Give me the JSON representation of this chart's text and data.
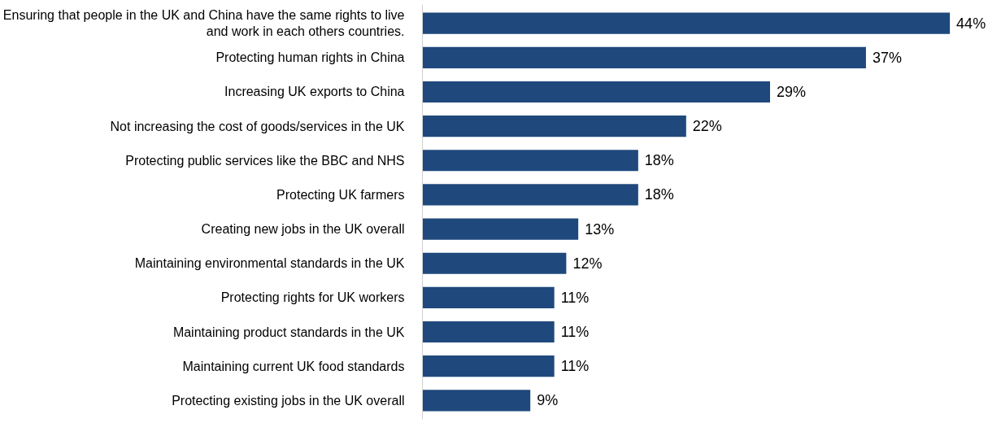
{
  "chart_data": {
    "type": "bar",
    "orientation": "horizontal",
    "tick_labels": "y",
    "value_labels": [
      "44%",
      "37%",
      "29%",
      "22%",
      "18%",
      "18%",
      "13%",
      "12%",
      "11%",
      "11%",
      "11%",
      "9%"
    ],
    "categories": [
      "Ensuring that people in the UK and China have the same rights to live and work in each others countries.",
      "Protecting human rights in China",
      "Increasing UK exports to China",
      "Not increasing the cost of goods/services in the UK",
      "Protecting public services like the BBC and NHS",
      "Protecting UK farmers",
      "Creating new jobs in the UK overall",
      "Maintaining environmental standards in the UK",
      "Protecting rights for UK workers",
      "Maintaining product standards in the UK",
      "Maintaining current UK food standards",
      "Protecting existing jobs in the UK overall"
    ],
    "values": [
      44,
      37,
      29,
      22,
      18,
      18,
      13,
      12,
      11,
      11,
      11,
      9
    ],
    "color": "#1f497d"
  }
}
